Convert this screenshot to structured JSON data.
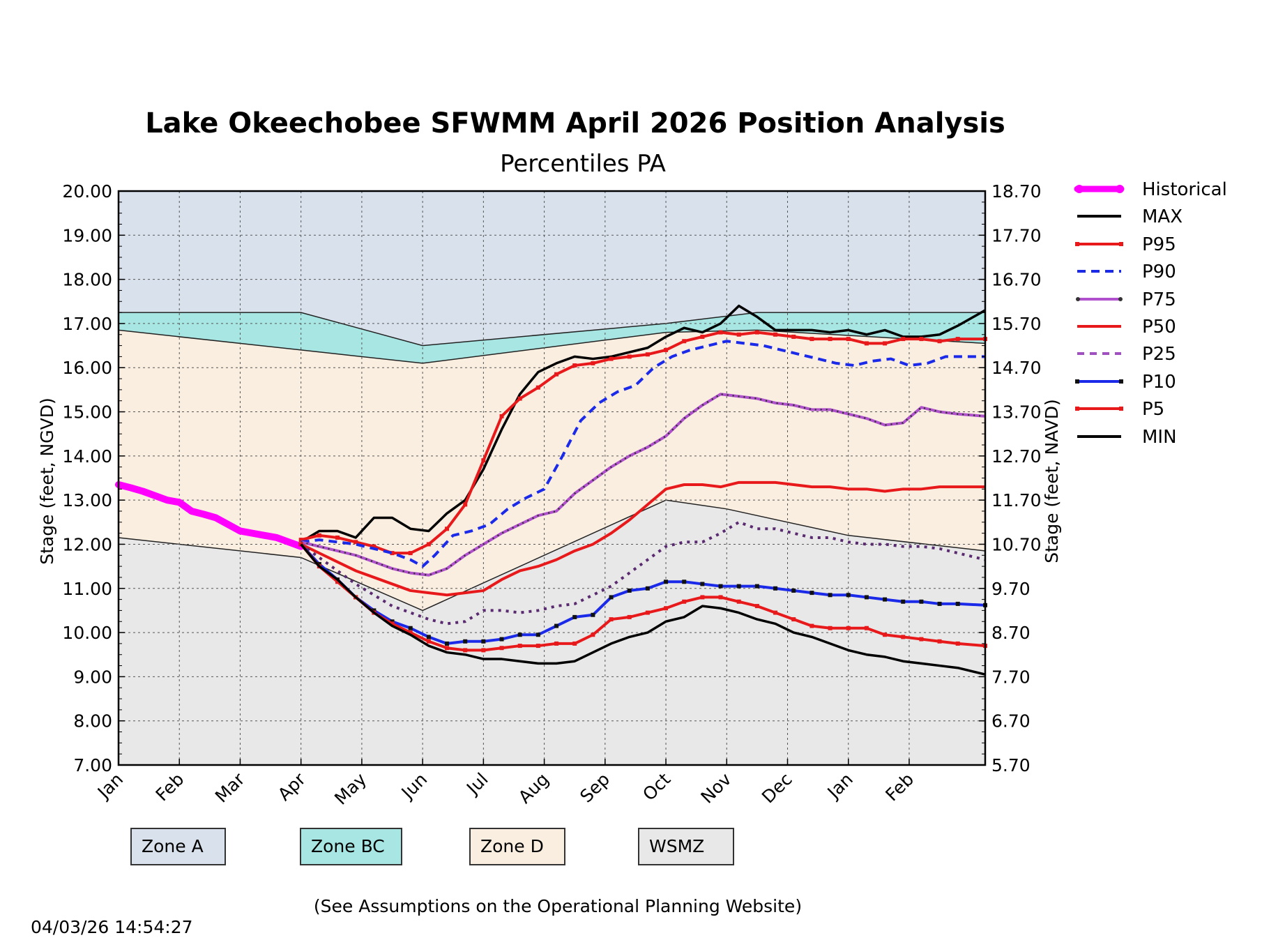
{
  "chart_data": {
    "type": "line",
    "title": "Lake Okeechobee SFWMM April 2026 Position Analysis",
    "subtitle": "Percentiles PA",
    "ylabel": "Stage (feet, NGVD)",
    "ylabel_right": "Stage (feet, NAVD)",
    "ylim": [
      7,
      20
    ],
    "xlim": [
      0,
      14.25
    ],
    "x_tick_labels": [
      "Jan",
      "Feb",
      "Mar",
      "Apr",
      "May",
      "Jun",
      "Jul",
      "Aug",
      "Sep",
      "Oct",
      "Nov",
      "Dec",
      "Jan",
      "Feb"
    ],
    "y_ticks": [
      7,
      8,
      9,
      10,
      11,
      12,
      13,
      14,
      15,
      16,
      17,
      18,
      19,
      20
    ],
    "y_tick_labels_left": [
      "7.00",
      "8.00",
      "9.00",
      "10.00",
      "11.00",
      "12.00",
      "13.00",
      "14.00",
      "15.00",
      "16.00",
      "17.00",
      "18.00",
      "19.00",
      "20.00"
    ],
    "y_tick_labels_right": [
      "5.70",
      "6.70",
      "7.70",
      "8.70",
      "9.70",
      "10.70",
      "11.70",
      "12.70",
      "13.70",
      "14.70",
      "15.70",
      "16.70",
      "17.70",
      "18.70"
    ],
    "grid": true,
    "legend_position": "outside-right",
    "zones": [
      {
        "name": "Zone A",
        "color": "#d8e1ec"
      },
      {
        "name": "Zone BC",
        "color": "#a7e6e2",
        "top": [
          [
            0,
            17.25
          ],
          [
            3,
            17.25
          ],
          [
            5,
            16.5
          ],
          [
            9,
            17
          ],
          [
            10.5,
            17.25
          ],
          [
            14.25,
            17.25
          ]
        ],
        "bottom": [
          [
            0,
            16.85
          ],
          [
            3,
            16.4
          ],
          [
            5,
            16.1
          ],
          [
            9,
            16.8
          ],
          [
            10.5,
            16.85
          ],
          [
            14.25,
            16.55
          ]
        ]
      },
      {
        "name": "Zone D",
        "color": "#faeee0",
        "top": [
          [
            0,
            16.85
          ],
          [
            3,
            16.4
          ],
          [
            5,
            16.1
          ],
          [
            9,
            16.8
          ],
          [
            10.5,
            16.85
          ],
          [
            14.25,
            16.55
          ]
        ],
        "bottom": [
          [
            0,
            12.15
          ],
          [
            3,
            11.7
          ],
          [
            5,
            10.5
          ],
          [
            9,
            13
          ],
          [
            10,
            12.8
          ],
          [
            12,
            12.2
          ],
          [
            14.25,
            11.85
          ]
        ]
      },
      {
        "name": "WSMZ",
        "color": "#e8e8e8",
        "top": [
          [
            0,
            12.15
          ],
          [
            3,
            11.7
          ],
          [
            5,
            10.5
          ],
          [
            9,
            13
          ],
          [
            10,
            12.8
          ],
          [
            12,
            12.2
          ],
          [
            14.25,
            11.85
          ]
        ],
        "bottom": [
          [
            0,
            7
          ],
          [
            14.25,
            7
          ]
        ]
      }
    ],
    "series": [
      {
        "name": "Historical",
        "color": "#ff00ff",
        "style": "thick",
        "x": [
          0,
          0.2,
          0.4,
          0.6,
          0.8,
          1.0,
          1.2,
          1.4,
          1.6,
          1.8,
          2.0,
          2.2,
          2.4,
          2.6,
          2.8,
          3.0
        ],
        "y": [
          13.35,
          13.28,
          13.2,
          13.1,
          13.0,
          12.95,
          12.75,
          12.68,
          12.6,
          12.45,
          12.3,
          12.25,
          12.2,
          12.15,
          12.05,
          11.95
        ]
      },
      {
        "name": "MAX",
        "color": "#000000",
        "style": "solid",
        "x": [
          3,
          3.3,
          3.6,
          3.9,
          4.2,
          4.5,
          4.8,
          5.1,
          5.4,
          5.7,
          6.0,
          6.3,
          6.6,
          6.9,
          7.2,
          7.5,
          7.8,
          8.1,
          8.4,
          8.7,
          9.0,
          9.3,
          9.6,
          9.9,
          10.2,
          10.5,
          10.8,
          11.1,
          11.4,
          11.7,
          12.0,
          12.3,
          12.6,
          12.9,
          13.2,
          13.5,
          13.8,
          14.25
        ],
        "y": [
          12.05,
          12.3,
          12.3,
          12.15,
          12.6,
          12.6,
          12.35,
          12.3,
          12.7,
          13.0,
          13.7,
          14.6,
          15.4,
          15.9,
          16.1,
          16.25,
          16.2,
          16.25,
          16.35,
          16.45,
          16.7,
          16.9,
          16.8,
          17.0,
          17.4,
          17.15,
          16.85,
          16.85,
          16.85,
          16.8,
          16.85,
          16.75,
          16.85,
          16.7,
          16.7,
          16.75,
          16.95,
          17.3
        ]
      },
      {
        "name": "P95",
        "color": "#e8191b",
        "style": "square",
        "x": [
          3,
          3.3,
          3.6,
          3.9,
          4.2,
          4.5,
          4.8,
          5.1,
          5.4,
          5.7,
          6.0,
          6.3,
          6.6,
          6.9,
          7.2,
          7.5,
          7.8,
          8.1,
          8.4,
          8.7,
          9.0,
          9.3,
          9.6,
          9.9,
          10.2,
          10.5,
          10.8,
          11.1,
          11.4,
          11.7,
          12.0,
          12.3,
          12.6,
          12.9,
          13.2,
          13.5,
          13.8,
          14.25
        ],
        "y": [
          12.1,
          12.2,
          12.15,
          12.05,
          11.95,
          11.8,
          11.8,
          12.0,
          12.35,
          12.9,
          13.9,
          14.9,
          15.3,
          15.55,
          15.85,
          16.05,
          16.1,
          16.2,
          16.25,
          16.3,
          16.4,
          16.6,
          16.7,
          16.8,
          16.75,
          16.8,
          16.75,
          16.7,
          16.65,
          16.65,
          16.65,
          16.55,
          16.55,
          16.65,
          16.65,
          16.6,
          16.65,
          16.65
        ]
      },
      {
        "name": "P90",
        "color": "#1a2ae8",
        "style": "dashed",
        "x": [
          3,
          3.3,
          3.6,
          3.9,
          4.2,
          4.5,
          4.8,
          5.0,
          5.2,
          5.5,
          5.8,
          6.1,
          6.4,
          6.7,
          7.0,
          7.3,
          7.6,
          7.9,
          8.2,
          8.5,
          8.8,
          9.1,
          9.4,
          9.7,
          10.0,
          10.3,
          10.6,
          10.9,
          11.2,
          11.5,
          11.8,
          12.1,
          12.4,
          12.7,
          13.0,
          13.3,
          13.6,
          13.9,
          14.25
        ],
        "y": [
          12.05,
          12.1,
          12.05,
          12.0,
          11.9,
          11.8,
          11.65,
          11.5,
          11.75,
          12.2,
          12.3,
          12.45,
          12.8,
          13.05,
          13.25,
          14.0,
          14.8,
          15.2,
          15.45,
          15.6,
          16.0,
          16.25,
          16.4,
          16.5,
          16.6,
          16.55,
          16.5,
          16.4,
          16.3,
          16.2,
          16.1,
          16.05,
          16.15,
          16.2,
          16.05,
          16.1,
          16.25,
          16.25,
          16.25
        ]
      },
      {
        "name": "P75",
        "color": "#b050cc",
        "style": "dotted",
        "x": [
          3,
          3.3,
          3.6,
          3.9,
          4.2,
          4.5,
          4.8,
          5.1,
          5.4,
          5.7,
          6.0,
          6.3,
          6.6,
          6.9,
          7.2,
          7.5,
          7.8,
          8.1,
          8.4,
          8.7,
          9.0,
          9.3,
          9.6,
          9.9,
          10.2,
          10.5,
          10.8,
          11.1,
          11.4,
          11.7,
          12.0,
          12.3,
          12.6,
          12.9,
          13.2,
          13.5,
          13.8,
          14.25
        ],
        "y": [
          12.05,
          11.95,
          11.85,
          11.75,
          11.6,
          11.45,
          11.35,
          11.3,
          11.45,
          11.75,
          12.0,
          12.25,
          12.45,
          12.65,
          12.75,
          13.15,
          13.45,
          13.75,
          14.0,
          14.2,
          14.45,
          14.85,
          15.15,
          15.4,
          15.35,
          15.3,
          15.2,
          15.15,
          15.05,
          15.05,
          14.95,
          14.85,
          14.7,
          14.75,
          15.1,
          15.0,
          14.95,
          14.9
        ]
      },
      {
        "name": "P50",
        "color": "#e8191b",
        "style": "solid",
        "x": [
          3,
          3.3,
          3.6,
          3.9,
          4.2,
          4.5,
          4.8,
          5.1,
          5.4,
          5.7,
          6.0,
          6.3,
          6.6,
          6.9,
          7.2,
          7.5,
          7.8,
          8.1,
          8.4,
          8.7,
          9.0,
          9.3,
          9.6,
          9.9,
          10.2,
          10.5,
          10.8,
          11.1,
          11.4,
          11.7,
          12.0,
          12.3,
          12.6,
          12.9,
          13.2,
          13.5,
          13.8,
          14.25
        ],
        "y": [
          12.0,
          11.8,
          11.6,
          11.4,
          11.25,
          11.1,
          10.95,
          10.9,
          10.85,
          10.9,
          10.95,
          11.2,
          11.4,
          11.5,
          11.65,
          11.85,
          12.0,
          12.25,
          12.55,
          12.9,
          13.25,
          13.35,
          13.35,
          13.3,
          13.4,
          13.4,
          13.4,
          13.35,
          13.3,
          13.3,
          13.25,
          13.25,
          13.2,
          13.25,
          13.25,
          13.3,
          13.3,
          13.3
        ]
      },
      {
        "name": "P25",
        "color": "#a050c0",
        "style": "dashed-dotted",
        "x": [
          3,
          3.3,
          3.6,
          3.9,
          4.2,
          4.5,
          4.8,
          5.1,
          5.4,
          5.7,
          6.0,
          6.3,
          6.6,
          6.9,
          7.2,
          7.5,
          7.8,
          8.1,
          8.4,
          8.7,
          9.0,
          9.3,
          9.6,
          9.9,
          10.2,
          10.5,
          10.8,
          11.1,
          11.4,
          11.7,
          12.0,
          12.3,
          12.6,
          12.9,
          13.2,
          13.5,
          13.8,
          14.25
        ],
        "y": [
          12.0,
          11.7,
          11.4,
          11.1,
          10.85,
          10.6,
          10.45,
          10.3,
          10.2,
          10.25,
          10.5,
          10.5,
          10.45,
          10.5,
          10.6,
          10.65,
          10.85,
          11.05,
          11.35,
          11.65,
          11.95,
          12.05,
          12.05,
          12.25,
          12.5,
          12.35,
          12.35,
          12.25,
          12.15,
          12.15,
          12.05,
          12.0,
          12.0,
          11.95,
          11.95,
          11.9,
          11.8,
          11.65
        ]
      },
      {
        "name": "P10",
        "color": "#1a2ae8",
        "style": "square",
        "x": [
          3,
          3.3,
          3.6,
          3.9,
          4.2,
          4.5,
          4.8,
          5.1,
          5.4,
          5.7,
          6.0,
          6.3,
          6.6,
          6.9,
          7.2,
          7.5,
          7.8,
          8.1,
          8.4,
          8.7,
          9.0,
          9.3,
          9.6,
          9.9,
          10.2,
          10.5,
          10.8,
          11.1,
          11.4,
          11.7,
          12.0,
          12.3,
          12.6,
          12.9,
          13.2,
          13.5,
          13.8,
          14.25
        ],
        "y": [
          12.0,
          11.55,
          11.2,
          10.8,
          10.5,
          10.25,
          10.1,
          9.9,
          9.75,
          9.8,
          9.8,
          9.85,
          9.95,
          9.95,
          10.15,
          10.35,
          10.4,
          10.8,
          10.95,
          11.0,
          11.15,
          11.15,
          11.1,
          11.05,
          11.05,
          11.05,
          11.0,
          10.95,
          10.9,
          10.85,
          10.85,
          10.8,
          10.75,
          10.7,
          10.7,
          10.65,
          10.65,
          10.62
        ]
      },
      {
        "name": "P5",
        "color": "#e8191b",
        "style": "square",
        "x": [
          3,
          3.3,
          3.6,
          3.9,
          4.2,
          4.5,
          4.8,
          5.1,
          5.4,
          5.7,
          6.0,
          6.3,
          6.6,
          6.9,
          7.2,
          7.5,
          7.8,
          8.1,
          8.4,
          8.7,
          9.0,
          9.3,
          9.6,
          9.9,
          10.2,
          10.5,
          10.8,
          11.1,
          11.4,
          11.7,
          12.0,
          12.3,
          12.6,
          12.9,
          13.2,
          13.5,
          13.8,
          14.25
        ],
        "y": [
          12.0,
          11.5,
          11.15,
          10.8,
          10.45,
          10.2,
          10.0,
          9.8,
          9.65,
          9.6,
          9.6,
          9.65,
          9.7,
          9.7,
          9.75,
          9.75,
          9.95,
          10.3,
          10.35,
          10.45,
          10.55,
          10.7,
          10.8,
          10.8,
          10.7,
          10.6,
          10.45,
          10.3,
          10.15,
          10.1,
          10.1,
          10.1,
          9.95,
          9.9,
          9.85,
          9.8,
          9.75,
          9.7
        ]
      },
      {
        "name": "MIN",
        "color": "#000000",
        "style": "solid",
        "x": [
          3,
          3.3,
          3.6,
          3.9,
          4.2,
          4.5,
          4.8,
          5.1,
          5.4,
          5.7,
          6.0,
          6.3,
          6.6,
          6.9,
          7.2,
          7.5,
          7.8,
          8.1,
          8.4,
          8.7,
          9.0,
          9.3,
          9.6,
          9.9,
          10.2,
          10.5,
          10.8,
          11.1,
          11.4,
          11.7,
          12.0,
          12.3,
          12.6,
          12.9,
          13.2,
          13.5,
          13.8,
          14.25
        ],
        "y": [
          12.0,
          11.5,
          11.2,
          10.8,
          10.45,
          10.15,
          9.95,
          9.7,
          9.55,
          9.5,
          9.4,
          9.4,
          9.35,
          9.3,
          9.3,
          9.35,
          9.55,
          9.75,
          9.9,
          10.0,
          10.25,
          10.35,
          10.6,
          10.55,
          10.45,
          10.3,
          10.2,
          10.0,
          9.9,
          9.75,
          9.6,
          9.5,
          9.45,
          9.35,
          9.3,
          9.25,
          9.2,
          9.05
        ]
      }
    ]
  },
  "legend": {
    "historical": "Historical",
    "max": "MAX",
    "p95": "P95",
    "p90": "P90",
    "p75": "P75",
    "p50": "P50",
    "p25": "P25",
    "p10": "P10",
    "p5": "P5",
    "min": "MIN"
  },
  "zone_legend": {
    "zone_a": {
      "label": "Zone A",
      "color": "#d8e1ec"
    },
    "zone_bc": {
      "label": "Zone BC",
      "color": "#a7e6e2"
    },
    "zone_d": {
      "label": "Zone D",
      "color": "#faeee0"
    },
    "wsmz": {
      "label": "WSMZ",
      "color": "#e8e8e8"
    }
  },
  "footnote": "(See Assumptions on the Operational Planning Website)",
  "timestamp": "04/03/26 14:54:27"
}
